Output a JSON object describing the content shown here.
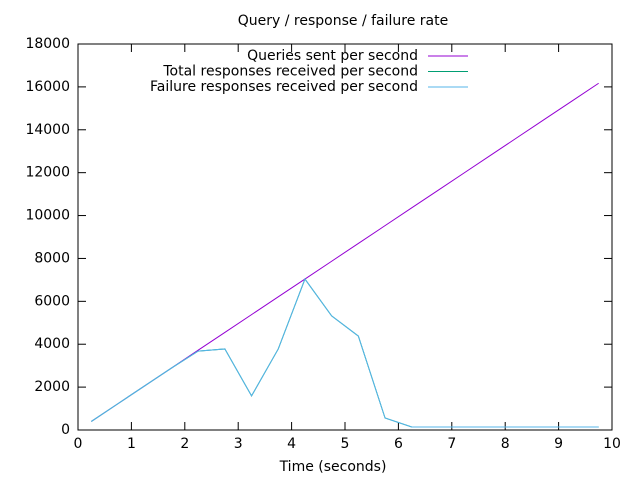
{
  "chart_data": {
    "type": "line",
    "title": "Query / response / failure rate",
    "xlabel": "Time (seconds)",
    "x": [
      0.25,
      0.75,
      1.25,
      1.75,
      2.25,
      2.75,
      3.25,
      3.75,
      4.25,
      4.75,
      5.25,
      5.75,
      6.25,
      6.75,
      7.25,
      7.75,
      8.25,
      8.75,
      9.25,
      9.75
    ],
    "series": [
      {
        "name": "Queries sent per second",
        "color": "#9400d3",
        "values": [
          400,
          1230,
          2060,
          2890,
          3720,
          4550,
          5380,
          6210,
          7040,
          7870,
          8700,
          9530,
          10360,
          11190,
          12020,
          12850,
          13680,
          14510,
          15340,
          16170
        ]
      },
      {
        "name": "Total responses received per second",
        "color": "#009e73",
        "values": [
          400,
          1230,
          2060,
          2890,
          3680,
          3780,
          1590,
          3780,
          7040,
          5320,
          4380,
          560,
          140,
          140,
          140,
          140,
          140,
          140,
          140,
          140
        ]
      },
      {
        "name": "Failure responses received per second",
        "color": "#56b4e9",
        "values": [
          400,
          1230,
          2060,
          2890,
          3680,
          3780,
          1590,
          3780,
          7040,
          5320,
          4380,
          560,
          140,
          140,
          140,
          140,
          140,
          140,
          140,
          140
        ]
      }
    ],
    "xlim": [
      0,
      10
    ],
    "xticks": [
      0,
      1,
      2,
      3,
      4,
      5,
      6,
      7,
      8,
      9,
      10
    ],
    "ylim": [
      0,
      18000
    ],
    "yticks": [
      0,
      2000,
      4000,
      6000,
      8000,
      10000,
      12000,
      14000,
      16000,
      18000
    ],
    "legend": "top-right"
  }
}
